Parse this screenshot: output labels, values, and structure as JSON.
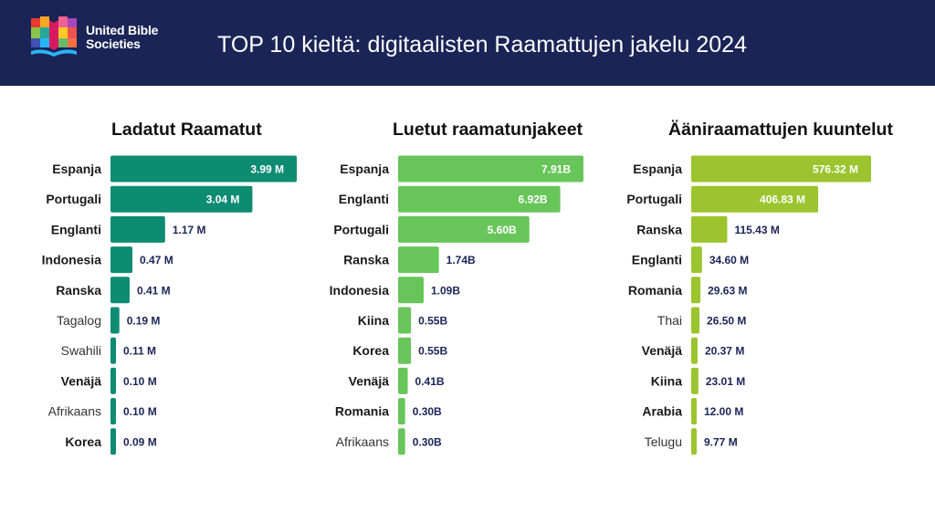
{
  "org": {
    "line1": "United Bible",
    "line2": "Societies"
  },
  "title": "TOP 10 kieltä: digitaalisten Raamattujen jakelu 2024",
  "colors": {
    "header_bg": "#1b2456",
    "value_label": "#1b2456",
    "bar_dark_teal": "#0e8c72",
    "bar_green": "#68c55a",
    "bar_lime": "#9bc42e"
  },
  "chart_data": [
    {
      "type": "bar",
      "orientation": "horizontal",
      "title": "Ladatut Raamatut",
      "unit": "M",
      "color": "#0e8c72",
      "categories": [
        "Espanja",
        "Portugali",
        "Englanti",
        "Indonesia",
        "Ranska",
        "Tagalog",
        "Swahili",
        "Venäjä",
        "Afrikaans",
        "Korea"
      ],
      "values": [
        3.99,
        3.04,
        1.17,
        0.47,
        0.41,
        0.19,
        0.11,
        0.1,
        0.1,
        0.09
      ],
      "value_labels": [
        "3.99 M",
        "3.04 M",
        "1.17 M",
        "0.47 M",
        "0.41 M",
        "0.19 M",
        "0.11 M",
        "0.10 M",
        "0.10 M",
        "0.09 M"
      ],
      "bold_categories": [
        true,
        true,
        true,
        true,
        true,
        false,
        false,
        true,
        false,
        true
      ],
      "xlim": [
        0,
        3.99
      ]
    },
    {
      "type": "bar",
      "orientation": "horizontal",
      "title": "Luetut raamatunjakeet",
      "unit": "B",
      "color": "#68c55a",
      "categories": [
        "Espanja",
        "Englanti",
        "Portugali",
        "Ranska",
        "Indonesia",
        "Kiina",
        "Korea",
        "Venäjä",
        "Romania",
        "Afrikaans"
      ],
      "values": [
        7.91,
        6.92,
        5.6,
        1.74,
        1.09,
        0.55,
        0.55,
        0.41,
        0.3,
        0.3
      ],
      "value_labels": [
        "7.91B",
        "6.92B",
        "5.60B",
        "1.74B",
        "1.09B",
        "0.55B",
        "0.55B",
        "0.41B",
        "0.30B",
        "0.30B"
      ],
      "bold_categories": [
        true,
        true,
        true,
        true,
        true,
        true,
        true,
        true,
        true,
        false
      ],
      "xlim": [
        0,
        7.91
      ]
    },
    {
      "type": "bar",
      "orientation": "horizontal",
      "title": "Ääniraamattujen kuuntelut",
      "unit": "M",
      "color": "#9bc42e",
      "categories": [
        "Espanja",
        "Portugali",
        "Ranska",
        "Englanti",
        "Romania",
        "Thai",
        "Venäjä",
        "Kiina",
        "Arabia",
        "Telugu"
      ],
      "values": [
        576.32,
        406.83,
        115.43,
        34.6,
        29.63,
        26.5,
        20.37,
        23.01,
        12.0,
        9.77
      ],
      "value_labels": [
        "576.32 M",
        "406.83 M",
        "115.43 M",
        "34.60 M",
        "29.63 M",
        "26.50 M",
        "20.37 M",
        "23.01 M",
        "12.00 M",
        "9.77 M"
      ],
      "bold_categories": [
        true,
        true,
        true,
        true,
        true,
        false,
        true,
        true,
        true,
        false
      ],
      "xlim": [
        0,
        576.32
      ]
    }
  ]
}
